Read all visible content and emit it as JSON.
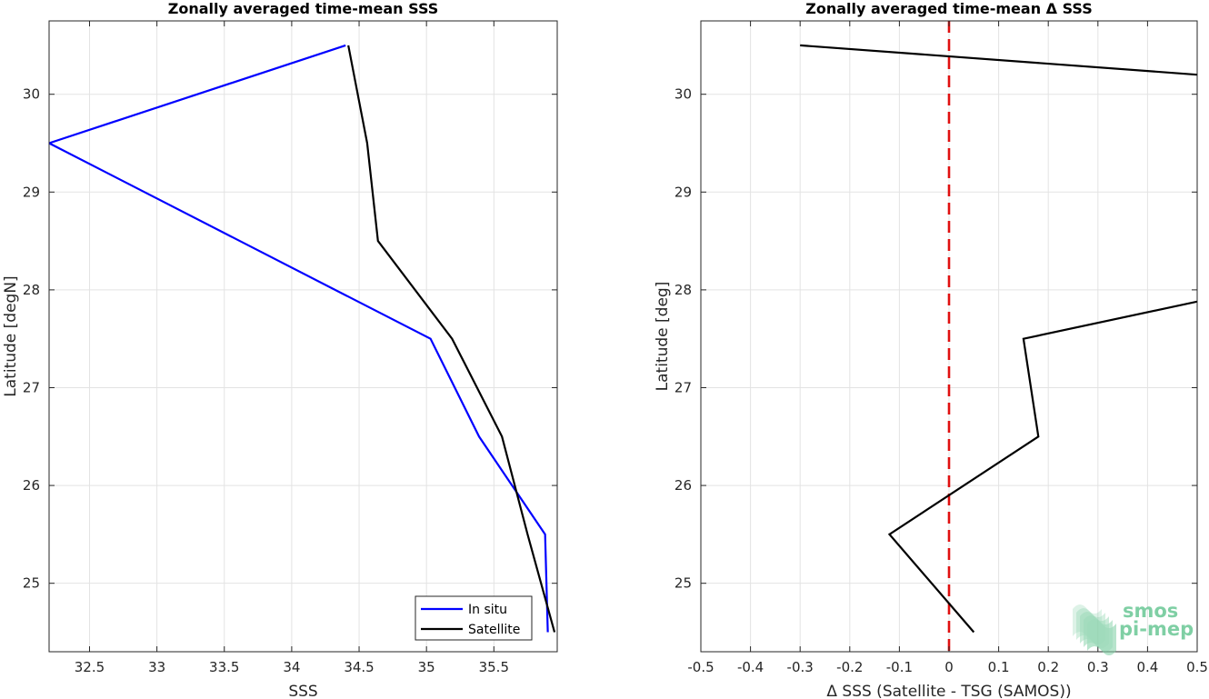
{
  "chart_data": [
    {
      "type": "line",
      "title": "Zonally averaged time-mean SSS",
      "xlabel": "SSS",
      "ylabel": "Latitude [degN]",
      "xlim": [
        32.2,
        35.97
      ],
      "ylim": [
        24.3,
        30.75
      ],
      "xticks": [
        32.5,
        33,
        33.5,
        34,
        34.5,
        35,
        35.5
      ],
      "xtick_labels": [
        "32.5",
        "33",
        "33.5",
        "34",
        "34.5",
        "35",
        "35.5"
      ],
      "yticks": [
        25,
        26,
        27,
        28,
        29,
        30
      ],
      "ytick_labels": [
        "25",
        "26",
        "27",
        "28",
        "29",
        "30"
      ],
      "grid": true,
      "legend_position": "bottom-right",
      "series": [
        {
          "name": "In situ",
          "color": "#0000ff",
          "points": [
            [
              34.4,
              30.5
            ],
            [
              32.2,
              29.5
            ],
            [
              35.03,
              27.5
            ],
            [
              35.39,
              26.5
            ],
            [
              35.88,
              25.5
            ],
            [
              35.9,
              24.5
            ]
          ]
        },
        {
          "name": "Satellite",
          "color": "#000000",
          "points": [
            [
              34.42,
              30.5
            ],
            [
              34.56,
              29.5
            ],
            [
              34.64,
              28.5
            ],
            [
              35.19,
              27.5
            ],
            [
              35.56,
              26.5
            ],
            [
              35.75,
              25.5
            ],
            [
              35.95,
              24.5
            ]
          ]
        }
      ]
    },
    {
      "type": "line",
      "title": "Zonally averaged time-mean Δ SSS",
      "xlabel": "Δ SSS (Satellite - TSG (SAMOS))",
      "ylabel": "Latitude [deg]",
      "xlim": [
        -0.5,
        0.5
      ],
      "ylim": [
        24.3,
        30.75
      ],
      "xticks": [
        -0.5,
        -0.4,
        -0.3,
        -0.2,
        -0.1,
        0,
        0.1,
        0.2,
        0.3,
        0.4,
        0.5
      ],
      "xtick_labels": [
        "-0.5",
        "-0.4",
        "-0.3",
        "-0.2",
        "-0.1",
        "0",
        "0.1",
        "0.2",
        "0.3",
        "0.4",
        "0.5"
      ],
      "yticks": [
        25,
        26,
        27,
        28,
        29,
        30
      ],
      "ytick_labels": [
        "25",
        "26",
        "27",
        "28",
        "29",
        "30"
      ],
      "grid": true,
      "reference_line": {
        "x": 0,
        "color": "#e01010",
        "style": "dashed"
      },
      "series": [
        {
          "color": "#000000",
          "points": [
            [
              -0.3,
              30.5
            ],
            [
              0.5,
              30.2
            ],
            [
              null,
              null
            ],
            [
              0.5,
              27.88
            ],
            [
              0.15,
              27.5
            ],
            [
              0.18,
              26.5
            ],
            [
              -0.12,
              25.5
            ],
            [
              0.05,
              24.5
            ]
          ]
        }
      ]
    }
  ],
  "logo": {
    "line1": "smos",
    "line2": "pi-mep",
    "color": "#7fcfa4"
  }
}
